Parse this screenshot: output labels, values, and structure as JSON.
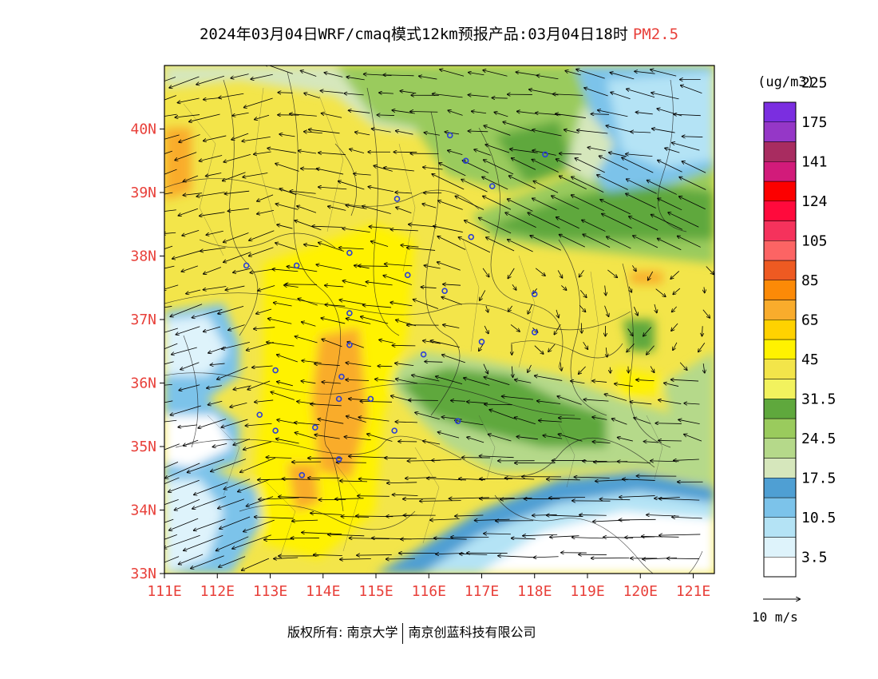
{
  "header": {
    "title": "2024年03月04日WRF/cmaq模式12km预报产品:03月04日18时",
    "pollutant": "PM2.5"
  },
  "map": {
    "lon_range": [
      111,
      121.4
    ],
    "lat_range": [
      33,
      41
    ],
    "lon_ticks": [
      "111E",
      "112E",
      "113E",
      "114E",
      "115E",
      "116E",
      "117E",
      "118E",
      "119E",
      "120E",
      "121E"
    ],
    "lat_ticks": [
      "33N",
      "34N",
      "35N",
      "36N",
      "37N",
      "38N",
      "39N",
      "40N"
    ],
    "tick_color": "#e8403a",
    "city_marker_color": "#2b3fd6",
    "cities": [
      [
        116.4,
        39.9
      ],
      [
        116.7,
        39.5
      ],
      [
        117.2,
        39.1
      ],
      [
        118.2,
        39.6
      ],
      [
        115.4,
        38.9
      ],
      [
        116.8,
        38.3
      ],
      [
        114.5,
        38.05
      ],
      [
        113.5,
        37.85
      ],
      [
        112.55,
        37.85
      ],
      [
        115.6,
        37.7
      ],
      [
        116.3,
        37.45
      ],
      [
        118.0,
        37.4
      ],
      [
        114.5,
        37.1
      ],
      [
        114.5,
        36.6
      ],
      [
        117.0,
        36.65
      ],
      [
        118.0,
        36.8
      ],
      [
        115.9,
        36.45
      ],
      [
        113.1,
        36.2
      ],
      [
        114.35,
        36.1
      ],
      [
        114.3,
        35.75
      ],
      [
        114.9,
        35.75
      ],
      [
        112.8,
        35.5
      ],
      [
        113.1,
        35.25
      ],
      [
        113.85,
        35.3
      ],
      [
        115.35,
        35.25
      ],
      [
        116.55,
        35.4
      ],
      [
        114.3,
        34.8
      ],
      [
        113.6,
        34.55
      ]
    ],
    "wind_scale_label": "10 m/s"
  },
  "colorbar": {
    "unit": "(ug/m3)",
    "colors": [
      "#ffffff",
      "#def3fb",
      "#b4e3f5",
      "#7cc3ea",
      "#4f9fd3",
      "#d6e7bc",
      "#b5d98a",
      "#9acb5d",
      "#5fa83d",
      "#f2f25e",
      "#f3e54a",
      "#fff200",
      "#ffd200",
      "#f9ac2c",
      "#fc8a07",
      "#ee5a22",
      "#fc6464",
      "#f5325c",
      "#ff0a3c",
      "#fc0000",
      "#d21b7a",
      "#a82c60",
      "#9537c7",
      "#7b2ee0"
    ],
    "labels": [
      "3.5",
      "10.5",
      "17.5",
      "24.5",
      "31.5",
      "45",
      "65",
      "85",
      "105",
      "124",
      "141",
      "175",
      "225"
    ]
  },
  "footer": {
    "copyright": "版权所有: 南京大学",
    "company": "南京创蓝科技有限公司"
  }
}
